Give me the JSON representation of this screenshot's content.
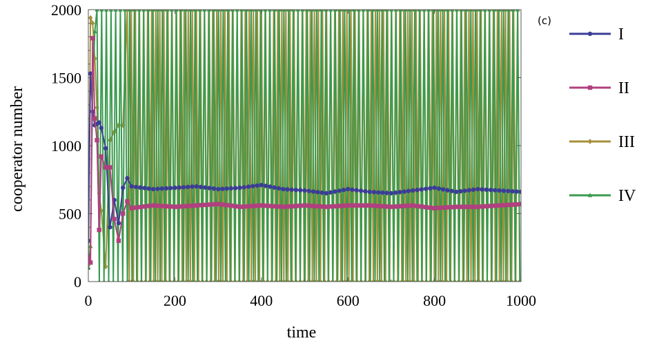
{
  "chart_data": {
    "type": "line",
    "panel_label": "(c)",
    "xlabel": "time",
    "ylabel": "cooperator  number",
    "xlim": [
      0,
      1000
    ],
    "ylim": [
      0,
      2000
    ],
    "x_ticks": [
      0,
      200,
      400,
      600,
      800,
      1000
    ],
    "y_ticks": [
      0,
      500,
      1000,
      1500,
      2000
    ],
    "x_tick_labels": [
      "0",
      "200",
      "400",
      "600",
      "800",
      "1000"
    ],
    "y_tick_labels": [
      "0",
      "500",
      "1000",
      "1500",
      "2000"
    ],
    "grid": false,
    "legend_position": "right",
    "series": [
      {
        "name": "I",
        "color": "#3b3d96",
        "marker": "circle",
        "x": [
          0,
          5,
          10,
          15,
          20,
          25,
          30,
          40,
          50,
          60,
          70,
          80,
          90,
          100,
          150,
          200,
          250,
          300,
          350,
          400,
          450,
          500,
          550,
          600,
          650,
          700,
          750,
          800,
          850,
          900,
          950,
          1000
        ],
        "y": [
          300,
          1530,
          1250,
          1150,
          1160,
          1170,
          1130,
          980,
          400,
          600,
          430,
          690,
          760,
          700,
          680,
          690,
          700,
          680,
          690,
          710,
          680,
          670,
          650,
          680,
          660,
          650,
          670,
          690,
          660,
          680,
          670,
          660
        ]
      },
      {
        "name": "II",
        "color": "#b0407f",
        "marker": "square",
        "x": [
          0,
          5,
          10,
          15,
          20,
          25,
          30,
          40,
          50,
          60,
          70,
          80,
          90,
          100,
          150,
          200,
          250,
          300,
          350,
          400,
          450,
          500,
          550,
          600,
          650,
          700,
          750,
          800,
          850,
          900,
          950,
          1000
        ],
        "y": [
          180,
          140,
          1790,
          1200,
          1040,
          380,
          920,
          840,
          840,
          460,
          300,
          500,
          590,
          540,
          560,
          550,
          560,
          570,
          550,
          560,
          550,
          560,
          550,
          560,
          560,
          550,
          560,
          540,
          550,
          550,
          560,
          570
        ]
      },
      {
        "name": "III",
        "color": "#a68f3a",
        "marker": "diamond",
        "x": [
          0,
          5,
          10,
          15,
          20,
          25,
          30,
          40,
          50,
          60,
          70,
          80,
          100,
          150,
          200,
          250,
          300,
          350,
          400,
          450,
          500,
          550,
          600,
          650,
          700,
          750,
          800,
          850,
          900,
          950,
          1000
        ],
        "y": [
          120,
          1940,
          1900,
          1640,
          1280,
          650,
          520,
          110,
          1040,
          1100,
          1150,
          1150,
          1140,
          1140,
          1130,
          1130,
          1120,
          1130,
          1130,
          1120,
          1120,
          1120,
          1120,
          1110,
          1110,
          1110,
          1120,
          1110,
          1110,
          1110,
          1110
        ],
        "oscillation": {
          "start": 90,
          "period": 9.4,
          "min": 0,
          "max": 2000
        }
      },
      {
        "name": "IV",
        "color": "#3a9a4e",
        "marker": "triangle",
        "x": [
          0,
          5,
          10,
          15,
          20,
          25,
          30,
          40,
          50,
          60,
          70,
          80
        ],
        "y": [
          100,
          260,
          1420,
          1840,
          30,
          1980,
          50,
          1980,
          20,
          1990,
          10,
          1990
        ],
        "oscillation": {
          "start": 20,
          "period": 10.8,
          "min": 0,
          "max": 2000
        }
      }
    ]
  }
}
